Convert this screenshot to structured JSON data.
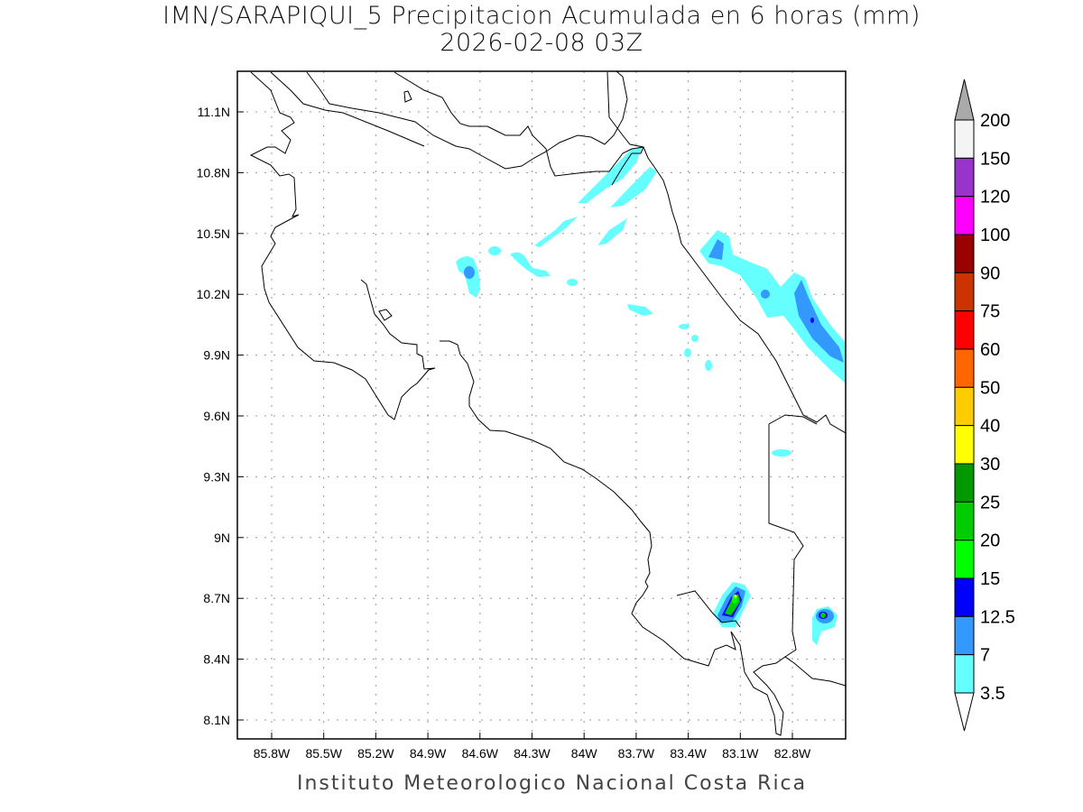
{
  "title": {
    "line1": "IMN/SARAPIQUI_5 Precipitacion Acumulada en 6 horas (mm)",
    "line2": "2026-02-08 03Z"
  },
  "footer": "Instituto Meteorologico Nacional Costa Rica",
  "map": {
    "lon_ticks": [
      "85.8W",
      "85.5W",
      "85.2W",
      "84.9W",
      "84.6W",
      "84.3W",
      "84W",
      "83.7W",
      "83.4W",
      "83.1W",
      "82.8W"
    ],
    "lat_ticks": [
      "11.1N",
      "10.8N",
      "10.5N",
      "10.2N",
      "9.9N",
      "9.6N",
      "9.3N",
      "9N",
      "8.7N",
      "8.4N",
      "8.1N"
    ]
  },
  "colorbar": {
    "labels": [
      "200",
      "150",
      "120",
      "100",
      "90",
      "75",
      "60",
      "50",
      "40",
      "30",
      "25",
      "20",
      "15",
      "12.5",
      "7",
      "3.5"
    ],
    "colors": [
      "#f4f4f4",
      "#9933cc",
      "#ff00ff",
      "#990000",
      "#cc3300",
      "#ff0000",
      "#ff6600",
      "#ffcc00",
      "#ffff00",
      "#009900",
      "#00cc00",
      "#00ff00",
      "#0000ff",
      "#3399ff",
      "#66ffff"
    ],
    "over_color": "#aaaaaa",
    "under_color": "#ffffff"
  }
}
